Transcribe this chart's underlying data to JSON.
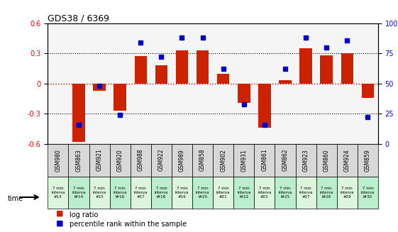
{
  "title": "GDS38 / 6369",
  "samples": [
    "GSM980",
    "GSM863",
    "GSM921",
    "GSM920",
    "GSM988",
    "GSM922",
    "GSM989",
    "GSM858",
    "GSM902",
    "GSM931",
    "GSM861",
    "GSM862",
    "GSM923",
    "GSM860",
    "GSM924",
    "GSM859"
  ],
  "time_labels": [
    "7 min\ninterva\n#13",
    "7 min\ninterva\nl#14",
    "7 min\ninterva\n#15",
    "7 min\ninterva\nl#16",
    "7 min\ninterva\n#17",
    "7 min\ninterva\nl#18",
    "7 min\ninterva\n#19",
    "7 min\ninterva\nl#20",
    "7 min\ninterva\n#21",
    "7 min\ninterva\nl#22",
    "7 min\ninterva\n#23",
    "7 min\ninterva\nl#25",
    "7 min\ninterva\n#27",
    "7 min\ninterva\nl#28",
    "7 min\ninterva\n#29",
    "7 min\ninterva\nl#30"
  ],
  "log_ratio": [
    0.0,
    -0.58,
    -0.07,
    -0.27,
    0.27,
    0.18,
    0.33,
    0.33,
    0.1,
    -0.19,
    -0.44,
    0.03,
    0.35,
    0.28,
    0.3,
    -0.14
  ],
  "percentile": [
    null,
    16,
    48,
    24,
    84,
    72,
    88,
    88,
    62,
    33,
    16,
    62,
    88,
    80,
    86,
    22
  ],
  "bar_color": "#cc2200",
  "dot_color": "#0000cc",
  "bg_color": "#f5f5f5",
  "ylim": [
    -0.6,
    0.6
  ],
  "y2lim": [
    0,
    100
  ],
  "yticks": [
    -0.3,
    0.0,
    0.3
  ],
  "y2ticks": [
    0,
    25,
    50,
    75,
    100
  ],
  "grid_color": "#000000",
  "zero_color": "#cc0000",
  "bar_width": 0.6,
  "cell_colors_gsm": [
    "#e0e0e0",
    "#e0e0e0",
    "#e0e0e0",
    "#e0e0e0",
    "#e0e0e0",
    "#e0e0e0",
    "#e0e0e0",
    "#e0e0e0",
    "#e0e0e0",
    "#e0e0e0",
    "#e0e0e0",
    "#e0e0e0",
    "#e0e0e0",
    "#e0e0e0",
    "#e0e0e0",
    "#e0e0e0"
  ],
  "cell_colors_time_light": [
    "#e8f8e8",
    "#e8f8e8",
    "#e8f8e8",
    "#e8f8e8",
    "#e8f8e8",
    "#e8f8e8",
    "#e8f8e8",
    "#e8f8e8",
    "#e8f8e8",
    "#e8f8e8",
    "#e8f8e8",
    "#e8f8e8",
    "#e8f8e8",
    "#e8f8e8",
    "#e8f8e8",
    "#e8f8e8"
  ],
  "cell_colors_time_dark": [
    "#c8f0c8",
    "#c8f0c8",
    "#c8f0c8",
    "#c8f0c8",
    "#c8f0c8",
    "#c8f0c8",
    "#c8f0c8",
    "#c8f0c8",
    "#c8f0c8",
    "#c8f0c8",
    "#c8f0c8",
    "#c8f0c8",
    "#c8f0c8",
    "#c8f0c8",
    "#c8f0c8",
    "#c8f0c8"
  ]
}
